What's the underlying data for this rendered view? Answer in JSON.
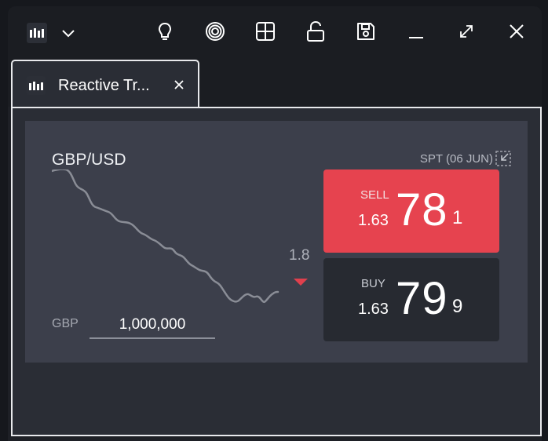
{
  "window": {
    "tab_title": "Reactive Tr...",
    "icons": [
      "app-logo-icon",
      "chevron-down-icon",
      "lightbulb-icon",
      "target-icon",
      "grid-icon",
      "unlock-icon",
      "save-icon",
      "minimize-icon",
      "maximize-icon",
      "close-icon"
    ]
  },
  "tile": {
    "currency_pair": "GBP/USD",
    "settlement": "SPT (06 JUN)",
    "spread": "1.8",
    "notional_currency": "GBP",
    "notional_value": "1,000,000",
    "sell": {
      "label": "SELL",
      "big_figure": "1.63",
      "pips": "78",
      "tenth": "1"
    },
    "buy": {
      "label": "BUY",
      "big_figure": "1.63",
      "pips": "79",
      "tenth": "9"
    },
    "movement": "down"
  },
  "colors": {
    "sell": "#e6434f",
    "buy": "#272a31",
    "tile": "#3c3f4b",
    "down_arrow": "#e0404d"
  }
}
